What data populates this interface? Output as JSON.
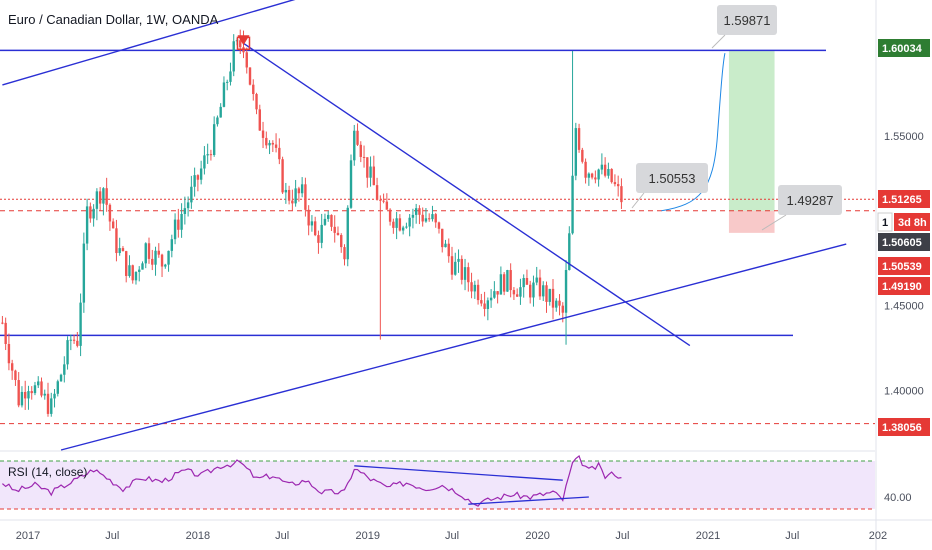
{
  "title": "Euro / Canadian Dollar, 1W, OANDA",
  "rsi_label": "RSI (14, close)",
  "colors": {
    "up": "#26a69a",
    "down": "#ef5350",
    "trendline": "#2a2fd4",
    "dashed": "#e53935",
    "target_fill": "#c9ecca",
    "stop_fill": "#f8c9c9",
    "rsi_line": "#9c27b0",
    "rsi_band": "#f1e6fb",
    "green_tag": "#2e7d32",
    "dark_tag": "#3d3f47",
    "red_tag": "#e53935",
    "callout_bg": "#d7d8db"
  },
  "chart_data": {
    "type": "candlestick",
    "symbol": "Euro / Canadian Dollar",
    "interval": "1W",
    "source": "OANDA",
    "x_ticks": [
      "2017",
      "Jul",
      "2018",
      "Jul",
      "2019",
      "Jul",
      "2020",
      "Jul",
      "2021",
      "Jul",
      "202"
    ],
    "y_ticks": [
      "1.55000",
      "1.45000",
      "1.40000"
    ],
    "y_tick_values": [
      1.55,
      1.45,
      1.4
    ],
    "y_range": [
      1.365,
      1.63
    ],
    "ohlc_anchors": [
      {
        "date": "2016-11-07",
        "close": 1.44
      },
      {
        "date": "2016-12-12",
        "close": 1.395
      },
      {
        "date": "2017-01-02",
        "close": 1.405
      },
      {
        "date": "2017-02-20",
        "close": 1.39
      },
      {
        "date": "2017-04-03",
        "close": 1.43
      },
      {
        "date": "2017-04-17",
        "close": 1.43
      },
      {
        "date": "2017-05-08",
        "close": 1.505
      },
      {
        "date": "2017-06-12",
        "close": 1.52
      },
      {
        "date": "2017-07-03",
        "close": 1.49
      },
      {
        "date": "2017-08-14",
        "close": 1.465
      },
      {
        "date": "2017-09-11",
        "close": 1.485
      },
      {
        "date": "2017-10-16",
        "close": 1.475
      },
      {
        "date": "2017-11-20",
        "close": 1.5
      },
      {
        "date": "2017-12-25",
        "close": 1.52
      },
      {
        "date": "2018-02-05",
        "close": 1.55
      },
      {
        "date": "2018-03-19",
        "close": 1.6
      },
      {
        "date": "2018-04-09",
        "close": 1.605
      },
      {
        "date": "2018-05-07",
        "close": 1.56
      },
      {
        "date": "2018-06-11",
        "close": 1.545
      },
      {
        "date": "2018-07-09",
        "close": 1.515
      },
      {
        "date": "2018-08-13",
        "close": 1.515
      },
      {
        "date": "2018-09-10",
        "close": 1.49
      },
      {
        "date": "2018-10-15",
        "close": 1.5
      },
      {
        "date": "2018-11-12",
        "close": 1.48
      },
      {
        "date": "2018-12-03",
        "close": 1.56
      },
      {
        "date": "2018-12-24",
        "close": 1.535
      },
      {
        "date": "2019-02-04",
        "close": 1.505
      },
      {
        "date": "2019-03-11",
        "close": 1.5
      },
      {
        "date": "2019-04-15",
        "close": 1.505
      },
      {
        "date": "2019-05-20",
        "close": 1.5
      },
      {
        "date": "2019-07-01",
        "close": 1.475
      },
      {
        "date": "2019-08-05",
        "close": 1.465
      },
      {
        "date": "2019-09-09",
        "close": 1.455
      },
      {
        "date": "2019-10-21",
        "close": 1.465
      },
      {
        "date": "2019-11-25",
        "close": 1.46
      },
      {
        "date": "2020-01-06",
        "close": 1.46
      },
      {
        "date": "2020-02-24",
        "close": 1.445
      },
      {
        "date": "2020-03-09",
        "close": 1.49
      },
      {
        "date": "2020-03-23",
        "close": 1.555
      },
      {
        "date": "2020-04-13",
        "close": 1.53
      },
      {
        "date": "2020-05-11",
        "close": 1.53
      },
      {
        "date": "2020-06-08",
        "close": 1.523
      },
      {
        "date": "2020-06-29",
        "close": 1.513
      }
    ],
    "extreme_wicks": [
      {
        "date": "2018-04-09",
        "high": 1.612
      },
      {
        "date": "2019-01-28",
        "low": 1.43
      },
      {
        "date": "2020-03-02",
        "low": 1.427
      },
      {
        "date": "2020-03-16",
        "high": 1.6
      }
    ],
    "horizontal_lines": [
      {
        "style": "solid",
        "price": 1.60034
      },
      {
        "style": "solid",
        "price": 1.4325
      },
      {
        "style": "dashed",
        "price": 1.51265
      },
      {
        "style": "dashed",
        "price": 1.5059
      },
      {
        "style": "dashed",
        "price": 1.38056
      }
    ],
    "trendlines": [
      {
        "from": {
          "date": "2018-04-09",
          "price": 1.6045
        },
        "to": {
          "date": "2020-11-23",
          "price": 1.4265
        }
      },
      {
        "from": {
          "date": "2017-03-13",
          "price": 1.365
        },
        "to": {
          "date": "2021-10-25",
          "price": 1.4863
        }
      },
      {
        "from": {
          "date": "2016-11-07",
          "price": 1.58
        },
        "to": {
          "date": "2018-11-26",
          "price": 1.64
        }
      }
    ],
    "position": {
      "entry": 1.5059,
      "target": 1.60034,
      "stop": 1.49287,
      "from": "2021-02-15",
      "to": "2021-05-24"
    },
    "callouts": [
      "1.59871",
      "1.50553",
      "1.49287"
    ],
    "price_tags": [
      {
        "text": "1.60034",
        "price": 1.60034,
        "style": "green"
      },
      {
        "text": "1.51265",
        "price": 1.51265,
        "style": "red"
      },
      {
        "text": "1",
        "price": 1.5059,
        "style": "dark"
      },
      {
        "text": "3d 8h",
        "price": 1.5059,
        "style": "red"
      },
      {
        "text": "1.50605",
        "price": 1.50605,
        "style": "dark"
      },
      {
        "text": "1.50539",
        "price": 1.50539,
        "style": "red"
      },
      {
        "text": "1.49190",
        "price": 1.4919,
        "style": "red"
      },
      {
        "text": "1.38056",
        "price": 1.38056,
        "style": "red"
      }
    ],
    "rsi": {
      "label": "RSI (14, close)",
      "y_range": [
        25,
        75
      ],
      "upper_band": 70,
      "lower_band": 30,
      "y_ticks": [
        "40.00"
      ],
      "anchors": [
        {
          "date": "2016-11-07",
          "value": 52
        },
        {
          "date": "2016-12-05",
          "value": 45
        },
        {
          "date": "2017-01-16",
          "value": 50
        },
        {
          "date": "2017-02-20",
          "value": 44
        },
        {
          "date": "2017-04-17",
          "value": 55
        },
        {
          "date": "2017-05-22",
          "value": 63
        },
        {
          "date": "2017-06-12",
          "value": 58
        },
        {
          "date": "2017-07-24",
          "value": 47
        },
        {
          "date": "2017-09-04",
          "value": 56
        },
        {
          "date": "2017-10-16",
          "value": 53
        },
        {
          "date": "2017-12-04",
          "value": 62
        },
        {
          "date": "2018-01-08",
          "value": 58
        },
        {
          "date": "2018-02-19",
          "value": 66
        },
        {
          "date": "2018-04-02",
          "value": 69
        },
        {
          "date": "2018-05-07",
          "value": 55
        },
        {
          "date": "2018-06-11",
          "value": 58
        },
        {
          "date": "2018-07-16",
          "value": 50
        },
        {
          "date": "2018-08-20",
          "value": 54
        },
        {
          "date": "2018-09-24",
          "value": 44
        },
        {
          "date": "2018-11-12",
          "value": 44
        },
        {
          "date": "2018-12-03",
          "value": 64
        },
        {
          "date": "2019-01-07",
          "value": 55
        },
        {
          "date": "2019-02-11",
          "value": 48
        },
        {
          "date": "2019-03-25",
          "value": 52
        },
        {
          "date": "2019-05-06",
          "value": 47
        },
        {
          "date": "2019-06-10",
          "value": 50
        },
        {
          "date": "2019-07-15",
          "value": 44
        },
        {
          "date": "2019-08-19",
          "value": 34
        },
        {
          "date": "2019-09-23",
          "value": 38
        },
        {
          "date": "2019-11-04",
          "value": 42
        },
        {
          "date": "2019-12-16",
          "value": 40
        },
        {
          "date": "2020-02-03",
          "value": 44
        },
        {
          "date": "2020-02-24",
          "value": 38
        },
        {
          "date": "2020-03-16",
          "value": 68
        },
        {
          "date": "2020-03-30",
          "value": 72
        },
        {
          "date": "2020-04-20",
          "value": 62
        },
        {
          "date": "2020-05-11",
          "value": 66
        },
        {
          "date": "2020-05-25",
          "value": 57
        },
        {
          "date": "2020-06-15",
          "value": 60
        },
        {
          "date": "2020-06-29",
          "value": 55
        }
      ],
      "trendlines": [
        {
          "from": {
            "date": "2018-12-03",
            "value": 66
          },
          "to": {
            "date": "2020-02-24",
            "value": 54
          }
        },
        {
          "from": {
            "date": "2019-08-05",
            "value": 34
          },
          "to": {
            "date": "2020-04-20",
            "value": 40
          }
        }
      ]
    }
  }
}
